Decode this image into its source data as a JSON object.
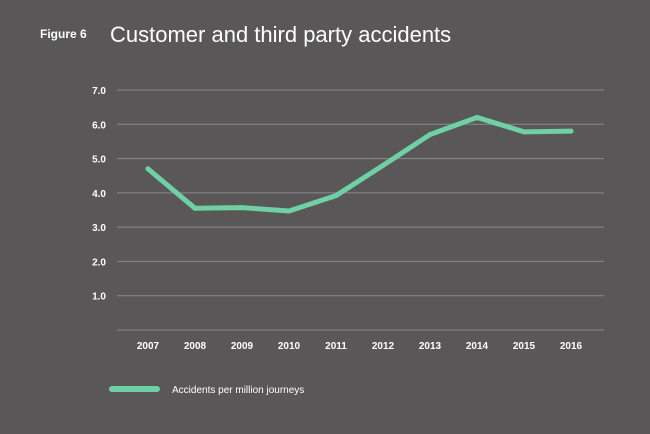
{
  "figure_label": "Figure 6",
  "chart_data": {
    "type": "line",
    "title": "Customer and third party accidents",
    "xlabel": "",
    "ylabel": "",
    "categories": [
      "2007",
      "2008",
      "2009",
      "2010",
      "2011",
      "2012",
      "2013",
      "2014",
      "2015",
      "2016"
    ],
    "series": [
      {
        "name": "Accidents per million journeys",
        "values": [
          4.7,
          3.55,
          3.57,
          3.47,
          3.92,
          4.8,
          5.7,
          6.2,
          5.78,
          5.8
        ],
        "color": "#6fcfa5"
      }
    ],
    "yticks": [
      "1.0",
      "2.0",
      "3.0",
      "4.0",
      "5.0",
      "6.0",
      "7.0"
    ],
    "ylim": [
      0,
      7
    ],
    "grid": true,
    "legend_position": "bottom-left"
  }
}
